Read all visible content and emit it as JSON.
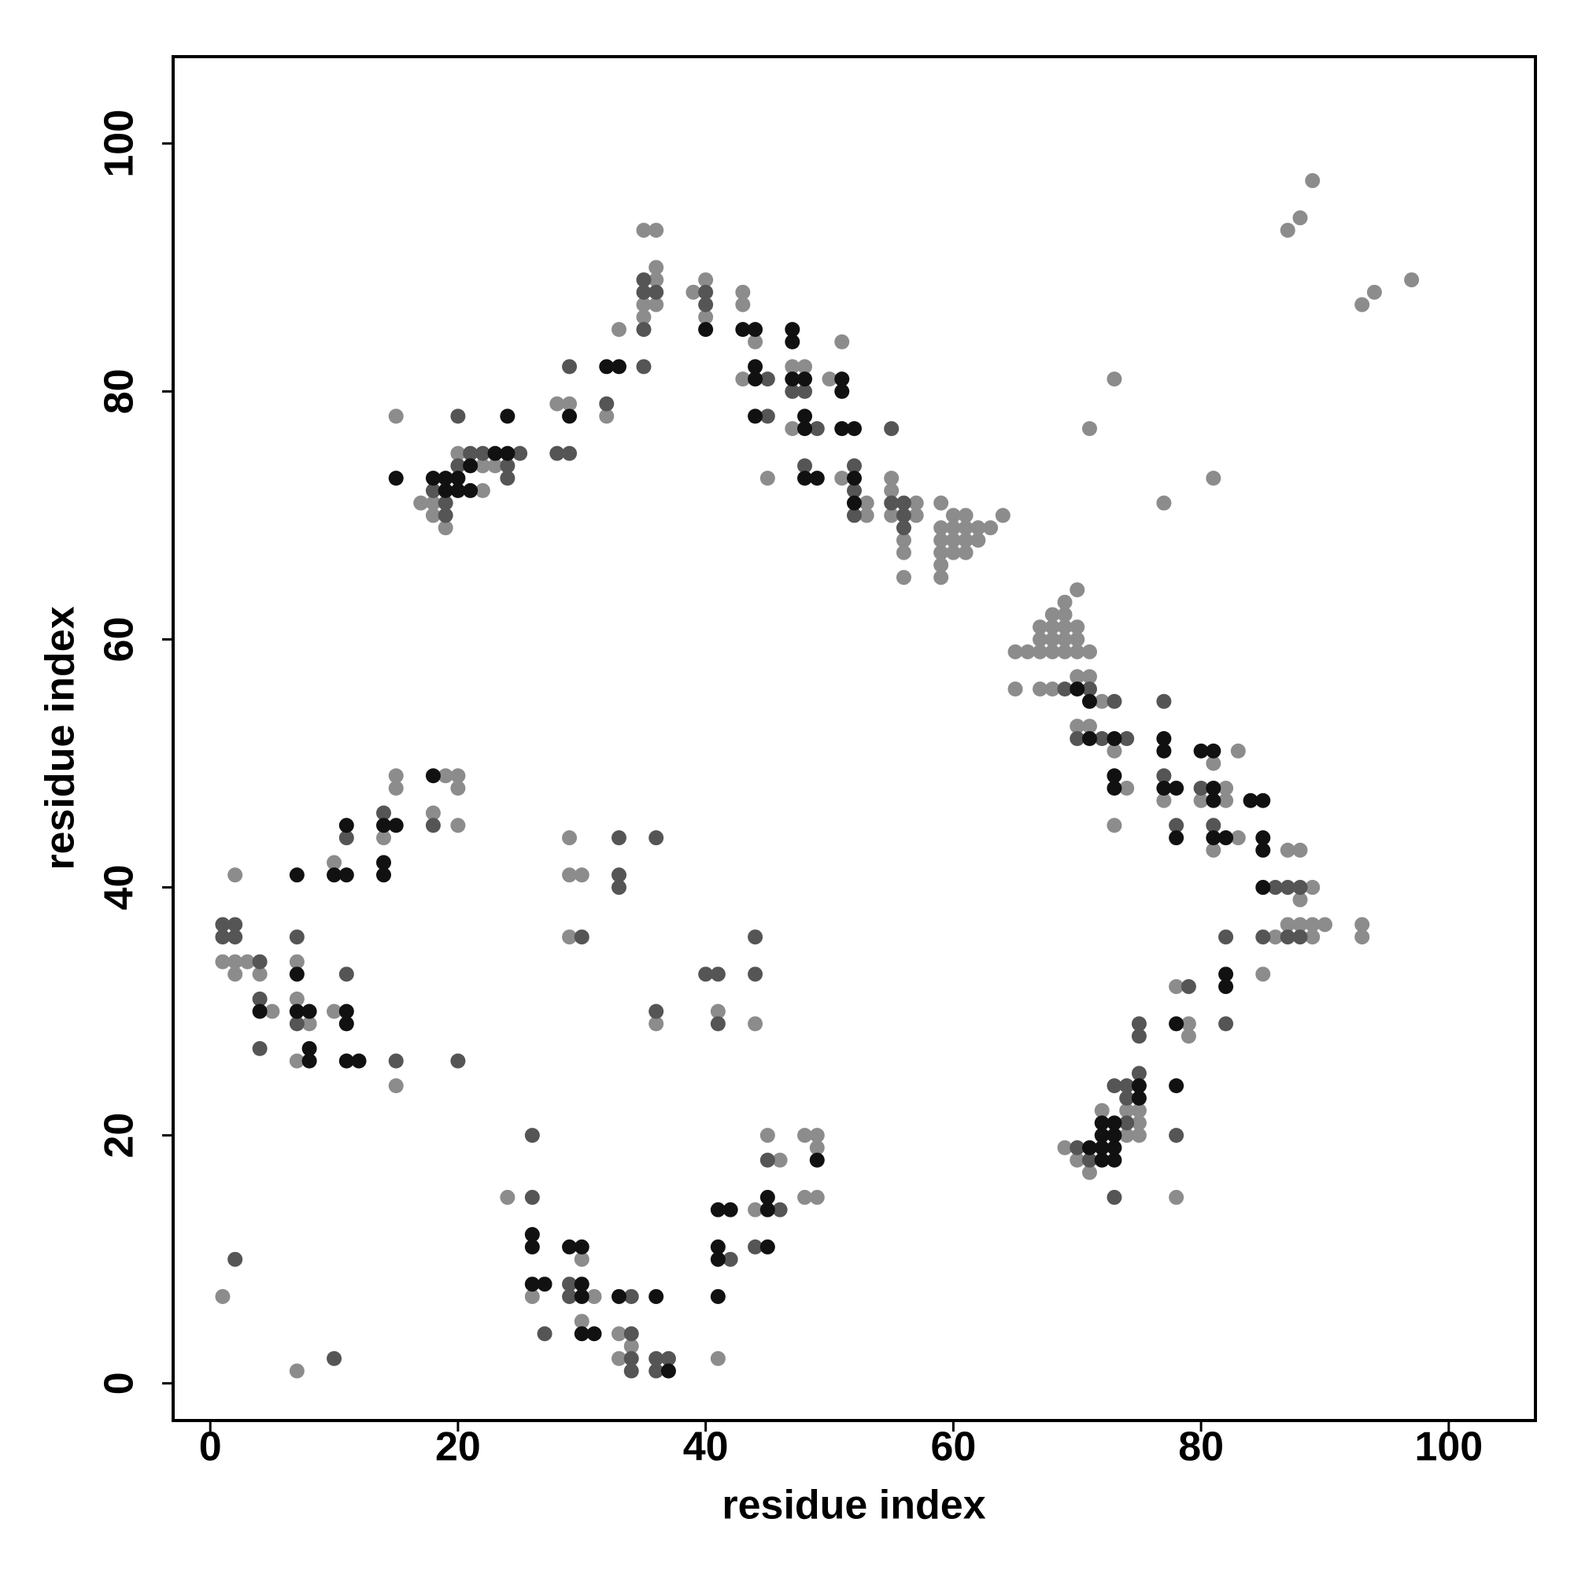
{
  "chart_data": {
    "type": "scatter",
    "xlabel": "residue index",
    "ylabel": "residue index",
    "xlim": [
      -3,
      107
    ],
    "ylim": [
      -3,
      107
    ],
    "xticks": [
      0,
      20,
      40,
      60,
      80,
      100
    ],
    "yticks": [
      0,
      20,
      40,
      60,
      80,
      100
    ],
    "series": [
      {
        "color": "#8c8c8c",
        "x": [
          1,
          7,
          1,
          2,
          3,
          2,
          4,
          2,
          5,
          7,
          7,
          8,
          7,
          10,
          10,
          14,
          15,
          15,
          15,
          19,
          20,
          20,
          18,
          20,
          29,
          29,
          30,
          29,
          36,
          41,
          44,
          24,
          26,
          30,
          31,
          30,
          33,
          34,
          33,
          41,
          44,
          45,
          46,
          48,
          49,
          49,
          48,
          49,
          15,
          17,
          22,
          18,
          18,
          19,
          20,
          22,
          23,
          28,
          29,
          32,
          33,
          35,
          36,
          36,
          36,
          35,
          36,
          35,
          39,
          40,
          40,
          43,
          43,
          44,
          43,
          45,
          47,
          48,
          47,
          51,
          50,
          51,
          53,
          53,
          55,
          55,
          57,
          55,
          57,
          56,
          56,
          56,
          59,
          60,
          61,
          59,
          60,
          61,
          62,
          63,
          59,
          60,
          61,
          62,
          59,
          60,
          61,
          59,
          59,
          64,
          87,
          88,
          89,
          93,
          94,
          97,
          73,
          71,
          77,
          81,
          65,
          65,
          66,
          67,
          67,
          67,
          67,
          68,
          68,
          68,
          68,
          68,
          69,
          69,
          69,
          69,
          69,
          70,
          70,
          70,
          70,
          70,
          71,
          71,
          72,
          70,
          71,
          73,
          74,
          73,
          77,
          82,
          80,
          82,
          81,
          81,
          83,
          83,
          89,
          87,
          88,
          88,
          87,
          88,
          89,
          90,
          86,
          89,
          93,
          93,
          85,
          78,
          79,
          79,
          78,
          69,
          70,
          71,
          72,
          74,
          74,
          75,
          75,
          75
        ],
        "y": [
          7,
          1,
          34,
          34,
          34,
          33,
          33,
          41,
          30,
          34,
          31,
          29,
          26,
          42,
          30,
          44,
          49,
          48,
          24,
          49,
          49,
          48,
          46,
          45,
          44,
          41,
          41,
          36,
          29,
          30,
          29,
          15,
          7,
          10,
          7,
          5,
          4,
          3,
          2,
          2,
          14,
          20,
          18,
          20,
          20,
          19,
          15,
          15,
          78,
          71,
          72,
          71,
          70,
          69,
          75,
          74,
          74,
          79,
          79,
          78,
          85,
          93,
          93,
          90,
          89,
          87,
          87,
          86,
          88,
          89,
          86,
          88,
          87,
          84,
          81,
          73,
          82,
          82,
          77,
          84,
          81,
          73,
          71,
          70,
          73,
          72,
          71,
          70,
          70,
          68,
          67,
          65,
          71,
          70,
          70,
          69,
          69,
          69,
          69,
          69,
          68,
          68,
          68,
          68,
          67,
          67,
          67,
          66,
          65,
          70,
          93,
          94,
          97,
          87,
          88,
          89,
          81,
          77,
          71,
          73,
          59,
          56,
          59,
          61,
          60,
          59,
          56,
          62,
          61,
          60,
          59,
          56,
          63,
          62,
          61,
          60,
          59,
          64,
          61,
          60,
          59,
          57,
          59,
          57,
          55,
          53,
          53,
          51,
          48,
          45,
          47,
          48,
          47,
          47,
          50,
          43,
          51,
          44,
          40,
          43,
          43,
          39,
          37,
          37,
          37,
          37,
          36,
          36,
          37,
          36,
          33,
          32,
          29,
          28,
          15,
          19,
          18,
          17,
          22,
          20,
          22,
          22,
          21,
          20
        ]
      },
      {
        "color": "#555555",
        "x": [
          2,
          10,
          1,
          2,
          1,
          2,
          4,
          4,
          4,
          7,
          7,
          11,
          11,
          14,
          18,
          15,
          20,
          30,
          33,
          33,
          33,
          36,
          36,
          40,
          41,
          41,
          44,
          44,
          26,
          26,
          27,
          29,
          29,
          34,
          34,
          34,
          34,
          36,
          37,
          36,
          42,
          46,
          44,
          45,
          18,
          19,
          19,
          20,
          21,
          22,
          20,
          25,
          24,
          24,
          28,
          29,
          29,
          32,
          35,
          35,
          36,
          35,
          35,
          40,
          40,
          45,
          45,
          47,
          48,
          49,
          48,
          52,
          52,
          52,
          55,
          55,
          56,
          56,
          56,
          69,
          71,
          70,
          72,
          73,
          74,
          77,
          77,
          78,
          80,
          81,
          86,
          87,
          88,
          85,
          87,
          88,
          82,
          82,
          79,
          75,
          75,
          78,
          70,
          71,
          74,
          73,
          74,
          74,
          75,
          73
        ],
        "y": [
          10,
          2,
          37,
          37,
          36,
          36,
          34,
          31,
          27,
          36,
          29,
          44,
          33,
          46,
          45,
          26,
          26,
          36,
          44,
          41,
          40,
          44,
          30,
          33,
          33,
          29,
          36,
          33,
          20,
          15,
          4,
          8,
          7,
          7,
          4,
          2,
          1,
          2,
          2,
          1,
          10,
          14,
          11,
          18,
          72,
          71,
          70,
          78,
          75,
          75,
          74,
          75,
          74,
          73,
          75,
          75,
          82,
          79,
          89,
          88,
          88,
          85,
          82,
          88,
          87,
          81,
          78,
          80,
          80,
          77,
          74,
          74,
          72,
          70,
          77,
          71,
          71,
          70,
          69,
          56,
          56,
          52,
          52,
          55,
          52,
          55,
          49,
          45,
          48,
          45,
          40,
          40,
          40,
          36,
          36,
          36,
          36,
          29,
          32,
          29,
          28,
          20,
          19,
          18,
          21,
          24,
          24,
          23,
          25,
          15
        ]
      },
      {
        "color": "#111111",
        "x": [
          4,
          7,
          7,
          7,
          8,
          8,
          8,
          10,
          11,
          11,
          11,
          11,
          11,
          12,
          14,
          15,
          14,
          14,
          18,
          26,
          26,
          26,
          27,
          29,
          30,
          30,
          30,
          30,
          31,
          33,
          36,
          37,
          41,
          42,
          41,
          41,
          41,
          45,
          45,
          45,
          49,
          15,
          18,
          19,
          20,
          19,
          20,
          21,
          21,
          23,
          24,
          24,
          29,
          32,
          33,
          40,
          43,
          44,
          44,
          44,
          44,
          47,
          47,
          47,
          48,
          48,
          48,
          48,
          49,
          51,
          51,
          51,
          52,
          52,
          52,
          70,
          71,
          71,
          73,
          73,
          73,
          77,
          77,
          77,
          78,
          78,
          80,
          81,
          81,
          81,
          81,
          82,
          84,
          85,
          85,
          85,
          85,
          82,
          82,
          78,
          78,
          71,
          72,
          73,
          72,
          73,
          72,
          73,
          72,
          73,
          75,
          75
        ],
        "y": [
          30,
          41,
          33,
          30,
          30,
          27,
          26,
          41,
          41,
          45,
          30,
          29,
          26,
          26,
          45,
          45,
          42,
          41,
          49,
          12,
          11,
          8,
          8,
          11,
          11,
          8,
          7,
          4,
          4,
          7,
          7,
          1,
          14,
          14,
          11,
          10,
          7,
          15,
          14,
          11,
          18,
          73,
          73,
          73,
          73,
          72,
          72,
          72,
          74,
          75,
          75,
          78,
          78,
          82,
          82,
          85,
          85,
          85,
          82,
          81,
          78,
          85,
          84,
          81,
          81,
          78,
          77,
          73,
          73,
          81,
          80,
          77,
          77,
          73,
          71,
          56,
          55,
          52,
          52,
          49,
          48,
          52,
          51,
          48,
          48,
          44,
          51,
          51,
          48,
          47,
          44,
          44,
          47,
          47,
          44,
          43,
          40,
          33,
          32,
          29,
          24,
          19,
          18,
          18,
          21,
          21,
          20,
          20,
          19,
          19,
          24,
          23
        ]
      }
    ]
  }
}
